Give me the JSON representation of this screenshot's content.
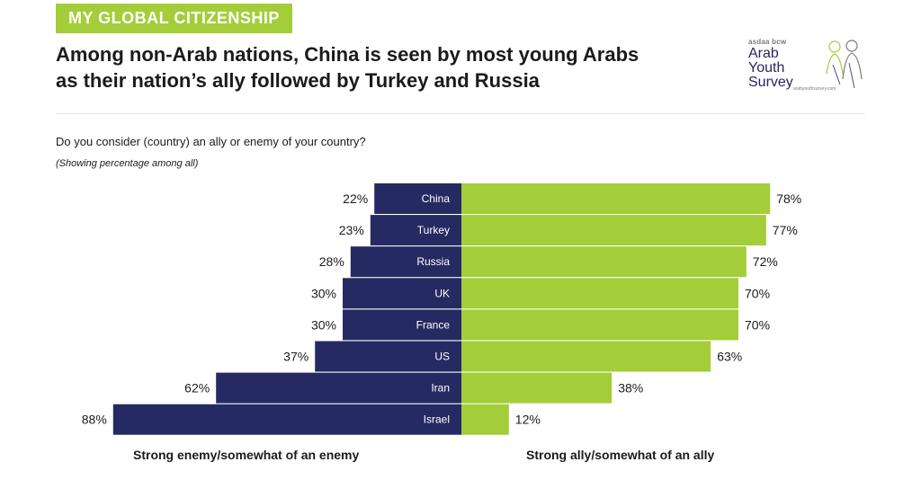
{
  "section_tag": "MY GLOBAL CITIZENSHIP",
  "headline_line1": "Among non-Arab nations, China is seen by most young Arabs",
  "headline_line2": "as their nation’s ally followed by Turkey and Russia",
  "question": "Do you consider (country) an ally or enemy of your country?",
  "note": "(Showing percentage among all)",
  "logo": {
    "brand": "asdaa bcw",
    "word1": "Arab",
    "word2": "Youth",
    "word3": "Survey",
    "url": "arabyouthsurvey.com"
  },
  "colors": {
    "enemy": "#262a62",
    "ally": "#a3cd39",
    "accent": "#a3cd39"
  },
  "chart_data": {
    "type": "bar",
    "orientation": "horizontal-diverging",
    "categories": [
      "China",
      "Turkey",
      "Russia",
      "UK",
      "France",
      "US",
      "Iran",
      "Israel"
    ],
    "series": [
      {
        "name": "Strong enemy/somewhat of an enemy",
        "values": [
          22,
          23,
          28,
          30,
          30,
          37,
          62,
          88
        ]
      },
      {
        "name": "Strong ally/somewhat of an ally",
        "values": [
          78,
          77,
          72,
          70,
          70,
          63,
          38,
          12
        ]
      }
    ],
    "value_suffix": "%"
  }
}
